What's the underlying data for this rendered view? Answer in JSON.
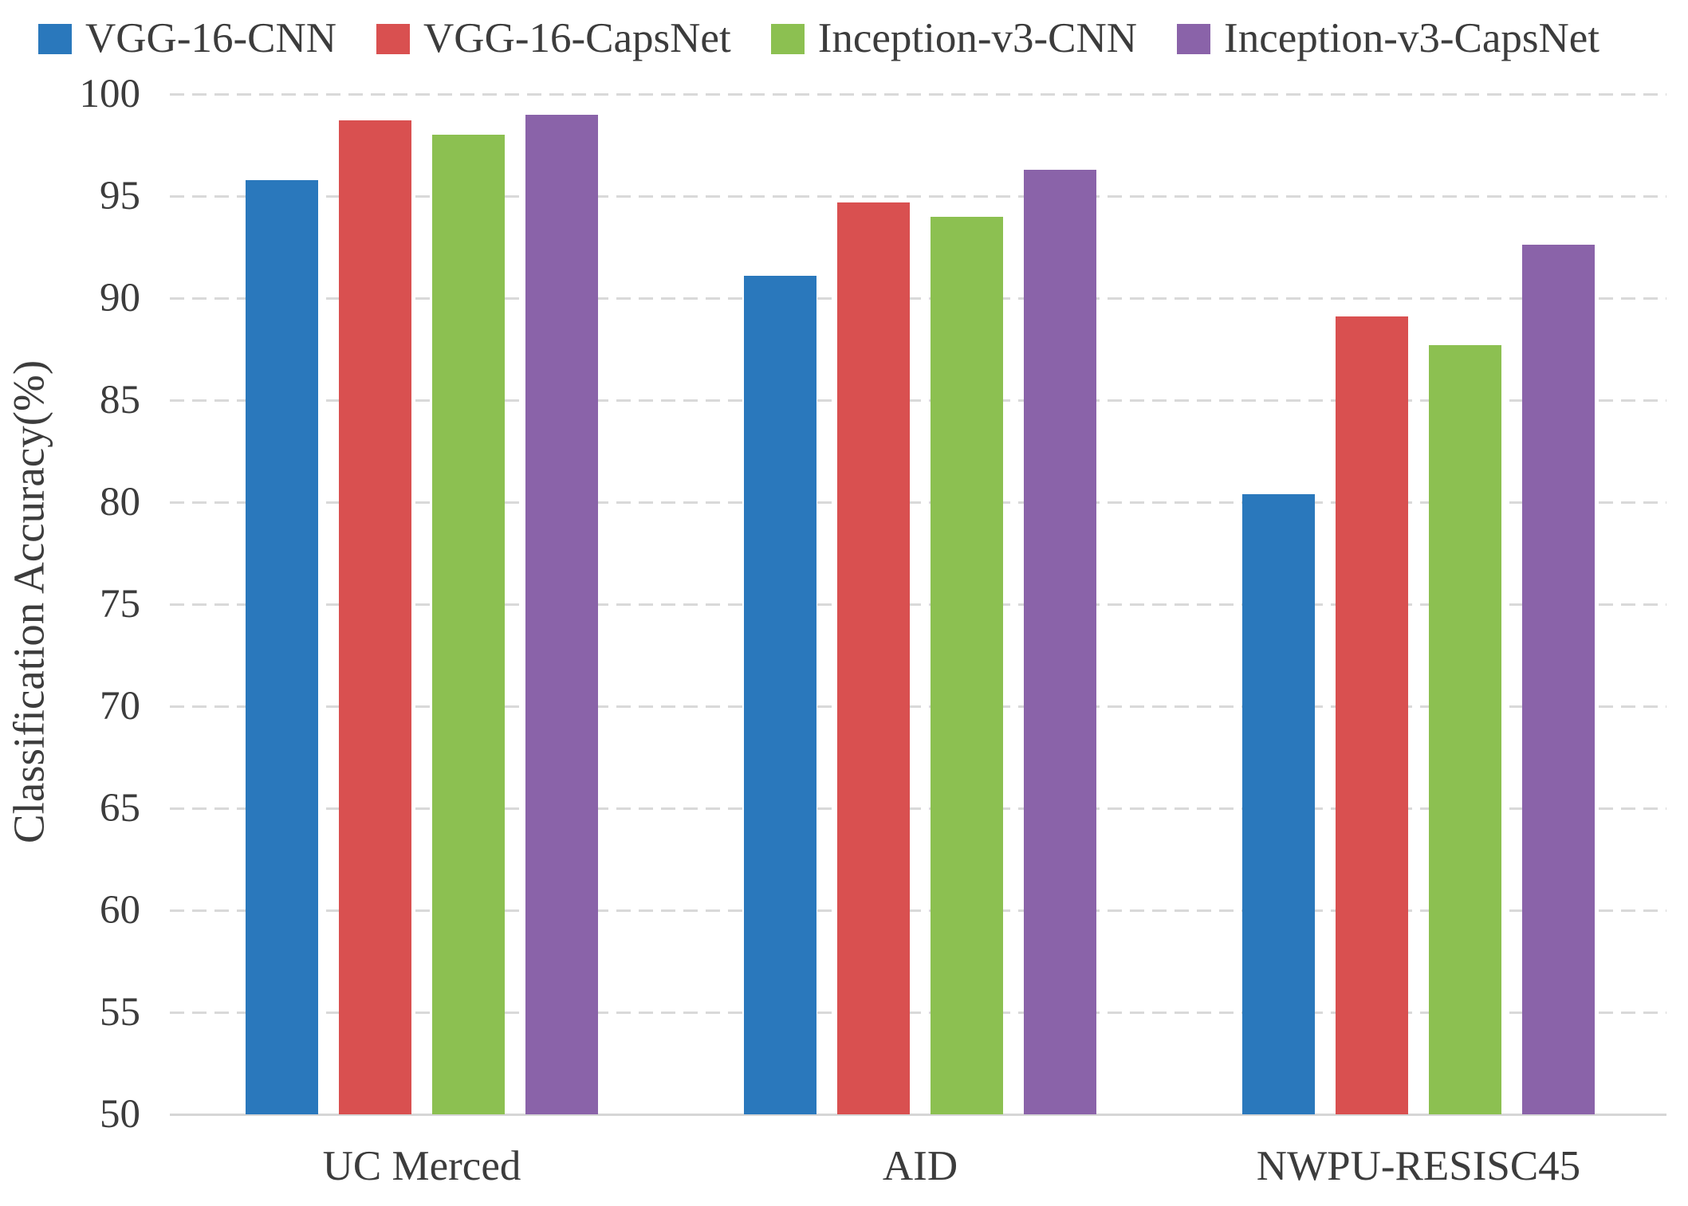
{
  "figure": {
    "background": "#ffffff",
    "text_color": "#3c3c3c",
    "gridline_color": "#d9d9d9",
    "baseline_color": "#d6d6d6"
  },
  "legend": {
    "position": "top-left",
    "items": [
      {
        "label": "VGG-16-CNN",
        "color": "#2A78BC",
        "swatch": "blue-square-icon"
      },
      {
        "label": "VGG-16-CapsNet",
        "color": "#D95050",
        "swatch": "red-square-icon"
      },
      {
        "label": "Inception-v3-CNN",
        "color": "#8CC051",
        "swatch": "green-square-icon"
      },
      {
        "label": "Inception-v3-CapsNet",
        "color": "#8A63A9",
        "swatch": "purple-square-icon"
      }
    ]
  },
  "chart_data": {
    "type": "bar",
    "title": "",
    "xlabel": "",
    "ylabel": "Classification Accuracy(%)",
    "categories": [
      "UC Merced",
      "AID",
      "NWPU-RESISC45"
    ],
    "series": [
      {
        "name": "VGG-16-CNN",
        "color": "#2A78BC",
        "values": [
          95.8,
          91.1,
          80.4
        ]
      },
      {
        "name": "VGG-16-CapsNet",
        "color": "#D95050",
        "values": [
          98.7,
          94.7,
          89.1
        ]
      },
      {
        "name": "Inception-v3-CNN",
        "color": "#8CC051",
        "values": [
          98.0,
          94.0,
          87.7
        ]
      },
      {
        "name": "Inception-v3-CapsNet",
        "color": "#8A63A9",
        "values": [
          99.0,
          96.3,
          92.6
        ]
      }
    ],
    "ylim": [
      50,
      100
    ],
    "yticks": [
      100,
      95,
      90,
      85,
      80,
      75,
      70,
      65,
      60,
      55,
      50
    ],
    "grid": "horizontal-dashed",
    "baseline": "solid-at-50",
    "legend_position": "top-left"
  }
}
